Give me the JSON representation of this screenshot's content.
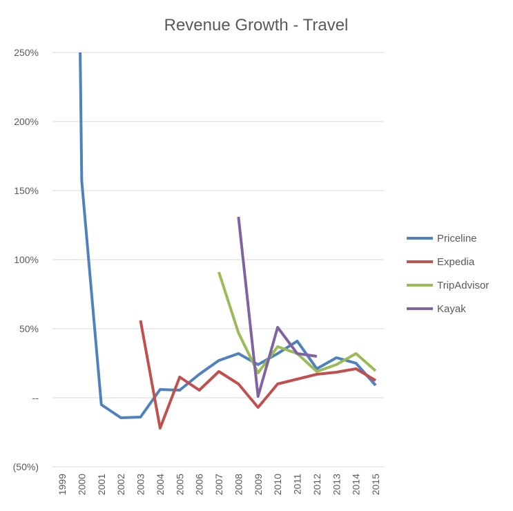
{
  "chart_data": {
    "type": "line",
    "title": "Revenue Growth - Travel",
    "categories": [
      "1999",
      "2000",
      "2001",
      "2002",
      "2003",
      "2004",
      "2005",
      "2006",
      "2007",
      "2008",
      "2009",
      "2010",
      "2011",
      "2012",
      "2013",
      "2014",
      "2015"
    ],
    "y_ticks": [
      {
        "value": 250,
        "label": "250%"
      },
      {
        "value": 200,
        "label": "200%"
      },
      {
        "value": 150,
        "label": "150%"
      },
      {
        "value": 100,
        "label": "100%"
      },
      {
        "value": 50,
        "label": "50%"
      },
      {
        "value": 0,
        "label": "--"
      },
      {
        "value": -50,
        "label": "(50%)"
      }
    ],
    "ylim": [
      -50,
      250
    ],
    "grid": true,
    "legend_position": "right",
    "series": [
      {
        "name": "Priceline",
        "color": "#4f81bd",
        "points": [
          [
            0.92,
            250
          ],
          [
            1.0,
            157
          ],
          [
            2.0,
            -5
          ],
          [
            3.0,
            -14.5
          ],
          [
            4.0,
            -14
          ],
          [
            5.0,
            6
          ],
          [
            6.0,
            5.5
          ],
          [
            7.0,
            17
          ],
          [
            8.0,
            27
          ],
          [
            9.0,
            32
          ],
          [
            10.0,
            24
          ],
          [
            11.0,
            32
          ],
          [
            12.0,
            41
          ],
          [
            13.0,
            21
          ],
          [
            14.0,
            29
          ],
          [
            15.0,
            25
          ],
          [
            16.0,
            9
          ]
        ]
      },
      {
        "name": "Expedia",
        "color": "#c0504d",
        "points": [
          [
            4.0,
            56
          ],
          [
            5.0,
            -22
          ],
          [
            6.0,
            15
          ],
          [
            7.0,
            5.5
          ],
          [
            8.0,
            19
          ],
          [
            9.0,
            10
          ],
          [
            10.0,
            -7
          ],
          [
            11.0,
            10
          ],
          [
            12.0,
            13.5
          ],
          [
            13.0,
            17
          ],
          [
            14.0,
            18.5
          ],
          [
            15.0,
            21
          ],
          [
            16.0,
            12.5
          ]
        ]
      },
      {
        "name": "TripAdvisor",
        "color": "#9bbb59",
        "points": [
          [
            8.0,
            91
          ],
          [
            9.0,
            47
          ],
          [
            10.0,
            18
          ],
          [
            11.0,
            37
          ],
          [
            12.0,
            32
          ],
          [
            13.0,
            19
          ],
          [
            14.0,
            24
          ],
          [
            15.0,
            32
          ],
          [
            16.0,
            19.5
          ]
        ]
      },
      {
        "name": "Kayak",
        "color": "#8064a2",
        "points": [
          [
            9.0,
            131
          ],
          [
            10.0,
            1
          ],
          [
            11.0,
            51
          ],
          [
            12.0,
            32
          ],
          [
            13.0,
            30
          ]
        ]
      }
    ]
  }
}
